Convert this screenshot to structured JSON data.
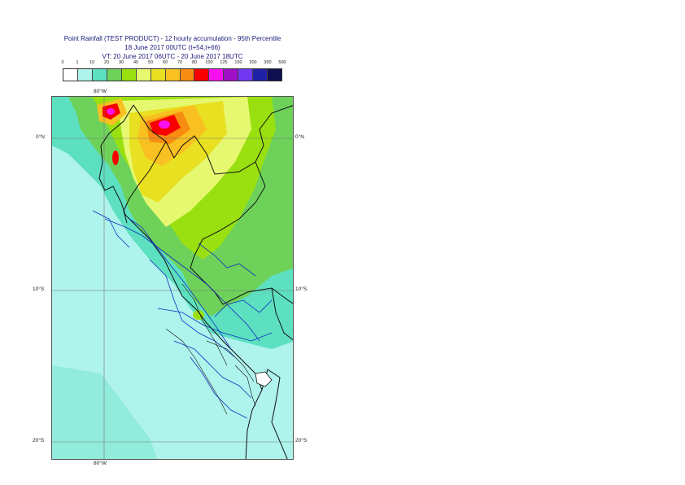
{
  "title": {
    "line1": "Point Rainfall (TEST PRODUCT) - 12 hourly accumulation - 95th Percentile",
    "line2": "18 June 2017 00UTC (t+54,t+66)",
    "line3": "VT: 20 June 2017 06UTC - 20 June 2017 18UTC"
  },
  "legend": {
    "labels": [
      "0",
      "1",
      "10",
      "20",
      "30",
      "40",
      "50",
      "60",
      "70",
      "80",
      "100",
      "125",
      "150",
      "200",
      "300",
      "500"
    ],
    "colors": [
      "#ffffff",
      "#aef3ec",
      "#5ce0c0",
      "#6ed25a",
      "#9ae010",
      "#e6f870",
      "#e8e020",
      "#f8c020",
      "#f88c10",
      "#f80000",
      "#f810f0",
      "#a010c8",
      "#7038f0",
      "#2020a8",
      "#101050"
    ]
  },
  "axes": {
    "lat_left": [
      "0°N",
      "10°S",
      "20°S"
    ],
    "lat_right": [
      "0°N",
      "10°S",
      "20°S"
    ],
    "lon_top": "80°W",
    "lon_bottom": "80°W"
  }
}
